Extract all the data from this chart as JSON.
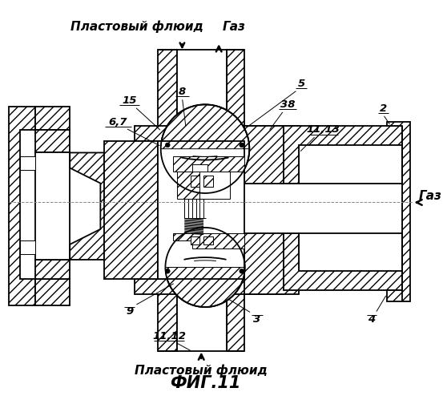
{
  "title": "ФИГ.11",
  "title_fontsize": 15,
  "title_style": "italic",
  "title_weight": "bold",
  "bg_color": "#ffffff",
  "line_color": "#000000",
  "figsize": [
    5.53,
    4.99
  ],
  "dpi": 100,
  "top_label_left": "Пластовый флюид",
  "top_label_right": "Газ",
  "bottom_label": "Пластовый флюид",
  "right_label": "Газ",
  "hatch": "///",
  "lw_thin": 0.7,
  "lw_main": 1.3,
  "lw_bold": 2.0
}
